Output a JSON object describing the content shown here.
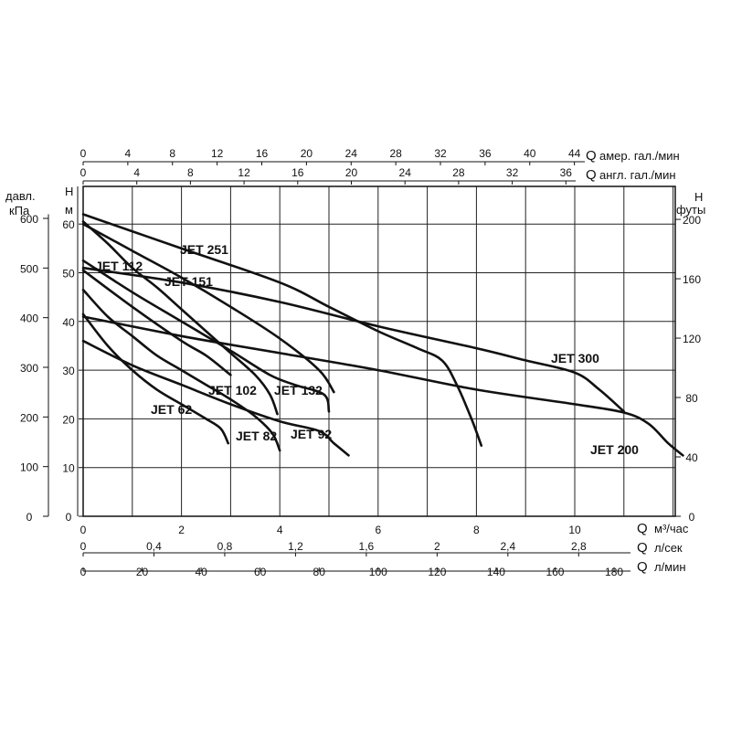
{
  "chart_data": {
    "type": "line",
    "title": "",
    "x": {
      "label_q": "Q",
      "unit": "м³/час",
      "range": [
        0,
        12.2
      ],
      "ticks": [
        0,
        2,
        4,
        6,
        8,
        10
      ]
    },
    "y": {
      "label": "H",
      "unit": "м",
      "range": [
        0,
        68
      ],
      "ticks": [
        0,
        10,
        20,
        30,
        40,
        50,
        60
      ]
    },
    "secondary_axes": {
      "top_us_gal": {
        "q": "Q",
        "label": "амер. гал./мин",
        "ticks": [
          "0",
          "4",
          "8",
          "12",
          "16",
          "20",
          "24",
          "28",
          "32",
          "36",
          "40",
          "44"
        ]
      },
      "top_uk_gal": {
        "q": "Q",
        "label": "англ. гал./мин",
        "ticks": [
          "0",
          "4",
          "8",
          "12",
          "16",
          "20",
          "24",
          "28",
          "32",
          "36"
        ]
      },
      "bottom_lps": {
        "q": "Q",
        "label": "л/сек",
        "ticks": [
          "0",
          "0,4",
          "0,8",
          "1,2",
          "1,6",
          "2",
          "2,4",
          "2,8"
        ]
      },
      "bottom_lpm": {
        "q": "Q",
        "label": "л/мин",
        "ticks": [
          "0",
          "20",
          "40",
          "60",
          "80",
          "100",
          "120",
          "140",
          "160",
          "180"
        ]
      },
      "left_kpa": {
        "label_top": "давл.",
        "label_bottom": "кПа",
        "ticks": [
          "0",
          "100",
          "200",
          "300",
          "400",
          "500",
          "600"
        ]
      },
      "left_m": {
        "label_top": "H",
        "label_bottom": "м"
      },
      "right_ft": {
        "label_top": "H",
        "label_bottom": "футы",
        "ticks": [
          "0",
          "40",
          "80",
          "120",
          "160",
          "200"
        ]
      }
    },
    "grid": true,
    "series": [
      {
        "name": "JET 62",
        "points": [
          [
            0,
            41.5
          ],
          [
            0.5,
            35
          ],
          [
            1,
            30
          ],
          [
            1.5,
            26
          ],
          [
            2,
            23
          ],
          [
            2.5,
            20
          ],
          [
            2.8,
            18
          ],
          [
            2.95,
            15
          ]
        ]
      },
      {
        "name": "JET 82",
        "points": [
          [
            0,
            46.5
          ],
          [
            0.5,
            41
          ],
          [
            1,
            37
          ],
          [
            1.5,
            33
          ],
          [
            2,
            30
          ],
          [
            2.5,
            27
          ],
          [
            3,
            24
          ],
          [
            3.5,
            20.5
          ],
          [
            3.85,
            17
          ],
          [
            4,
            13.5
          ]
        ]
      },
      {
        "name": "JET 92",
        "points": [
          [
            0,
            36
          ],
          [
            1,
            31
          ],
          [
            2,
            27
          ],
          [
            3,
            23
          ],
          [
            4,
            19.5
          ],
          [
            4.8,
            17.5
          ],
          [
            5.1,
            15
          ],
          [
            5.4,
            12.5
          ]
        ]
      },
      {
        "name": "JET 102",
        "points": [
          [
            0,
            50.5
          ],
          [
            1,
            43
          ],
          [
            2,
            36
          ],
          [
            2.5,
            33
          ],
          [
            3,
            29
          ]
        ]
      },
      {
        "name": "JET 112",
        "points": [
          [
            0,
            60.5
          ],
          [
            0.5,
            56
          ],
          [
            1,
            51
          ],
          [
            1.5,
            47
          ],
          [
            2,
            42.5
          ],
          [
            2.5,
            38
          ],
          [
            3,
            33.5
          ],
          [
            3.5,
            29
          ],
          [
            3.8,
            25
          ],
          [
            3.95,
            21
          ]
        ]
      },
      {
        "name": "JET 132",
        "points": [
          [
            0,
            52.5
          ],
          [
            1,
            46
          ],
          [
            2,
            40
          ],
          [
            3,
            34
          ],
          [
            3.8,
            29
          ],
          [
            4.3,
            27
          ],
          [
            4.9,
            25
          ],
          [
            5,
            21.5
          ]
        ]
      },
      {
        "name": "JET 151",
        "points": [
          [
            0,
            60
          ],
          [
            1,
            54.5
          ],
          [
            2,
            49
          ],
          [
            3,
            43
          ],
          [
            4,
            36.5
          ],
          [
            4.8,
            30
          ],
          [
            5.1,
            25.5
          ]
        ]
      },
      {
        "name": "JET 200",
        "points": [
          [
            0,
            41
          ],
          [
            2,
            37
          ],
          [
            4,
            33.5
          ],
          [
            6,
            30
          ],
          [
            8,
            26
          ],
          [
            10,
            23
          ],
          [
            11,
            21.3
          ],
          [
            11.5,
            19
          ],
          [
            11.9,
            15
          ],
          [
            12.2,
            12.5
          ]
        ]
      },
      {
        "name": "JET 251",
        "points": [
          [
            0,
            62
          ],
          [
            2,
            55
          ],
          [
            4,
            48
          ],
          [
            5,
            43
          ],
          [
            6,
            38
          ],
          [
            6.8,
            34.5
          ],
          [
            7.3,
            32
          ],
          [
            7.6,
            27
          ],
          [
            7.9,
            20
          ],
          [
            8.1,
            14.5
          ]
        ]
      },
      {
        "name": "JET 300",
        "points": [
          [
            0,
            51
          ],
          [
            2,
            48
          ],
          [
            4,
            44
          ],
          [
            6,
            39
          ],
          [
            8,
            34.5
          ],
          [
            9,
            32
          ],
          [
            10,
            29.5
          ],
          [
            10.5,
            26
          ],
          [
            11,
            21.5
          ]
        ]
      }
    ]
  }
}
